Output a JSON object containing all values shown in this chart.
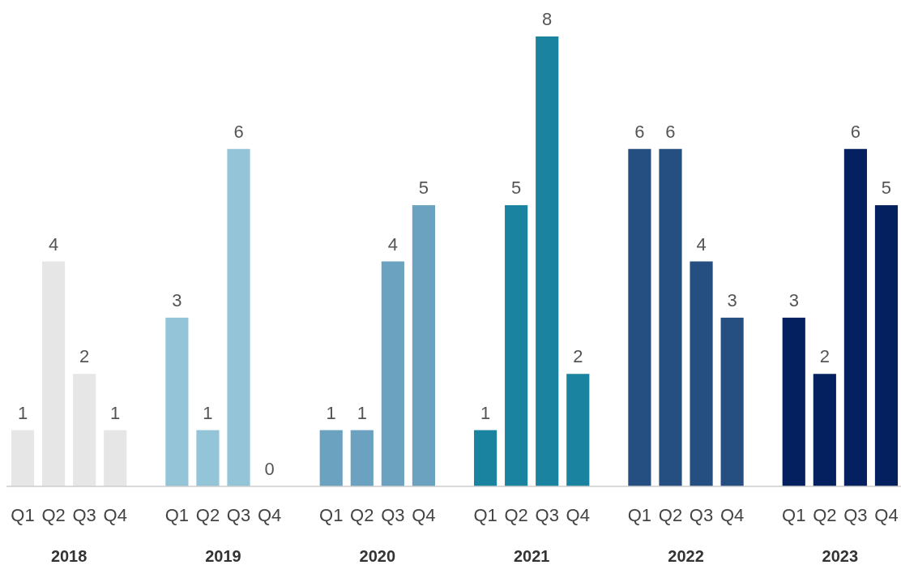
{
  "chart_data": {
    "type": "bar",
    "categories": [
      "Q1",
      "Q2",
      "Q3",
      "Q4",
      null,
      "Q1",
      "Q2",
      "Q3",
      "Q4",
      null,
      "Q1",
      "Q2",
      "Q3",
      "Q4",
      null,
      "Q1",
      "Q2",
      "Q3",
      "Q4",
      null,
      "Q1",
      "Q2",
      "Q3",
      "Q4",
      null,
      "Q1",
      "Q2",
      "Q3",
      "Q4"
    ],
    "values": [
      1,
      4,
      2,
      1,
      null,
      3,
      1,
      6,
      0,
      null,
      1,
      1,
      4,
      5,
      null,
      1,
      5,
      8,
      2,
      null,
      6,
      6,
      4,
      3,
      null,
      3,
      2,
      6,
      5
    ],
    "colors": [
      "#e6e6e6",
      "#e6e6e6",
      "#e6e6e6",
      "#e6e6e6",
      null,
      "#93c4d8",
      "#93c4d8",
      "#93c4d8",
      "#93c4d8",
      null,
      "#6aa2c0",
      "#6aa2c0",
      "#6aa2c0",
      "#6aa2c0",
      null,
      "#1a83a0",
      "#1a83a0",
      "#1a83a0",
      "#1a83a0",
      null,
      "#244f80",
      "#244f80",
      "#244f80",
      "#244f80",
      null,
      "#04205e",
      "#04205e",
      "#04205e",
      "#04205e"
    ],
    "annotations": [
      "2018",
      "2019",
      "2020",
      "2021",
      "2022",
      "2023"
    ],
    "ylim": [
      0,
      8
    ],
    "data_labels": true
  }
}
